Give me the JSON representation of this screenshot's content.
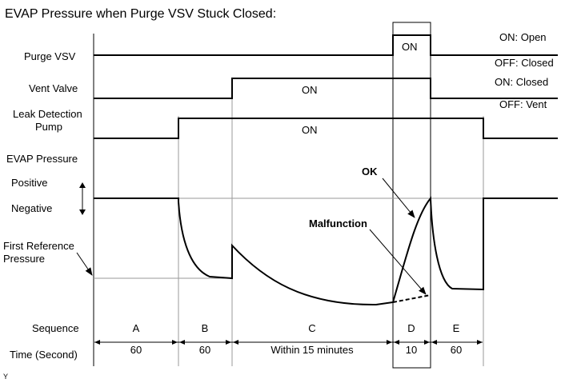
{
  "title": "EVAP Pressure when Purge VSV Stuck Closed:",
  "rows": {
    "purge_vsv": "Purge VSV",
    "vent_valve": "Vent Valve",
    "leak_pump_line1": "Leak Detection",
    "leak_pump_line2": "Pump",
    "evap_pressure": "EVAP Pressure",
    "positive": "Positive",
    "negative": "Negative",
    "first_ref_line1": "First Reference",
    "first_ref_line2": "Pressure",
    "sequence": "Sequence",
    "time": "Time (Second)"
  },
  "states": {
    "purge_on": "ON",
    "vent_on": "ON",
    "pump_on": "ON"
  },
  "legend": {
    "purge_on": "ON: Open",
    "purge_off": "OFF: Closed",
    "vent_on": "ON: Closed",
    "vent_off": "OFF: Vent"
  },
  "annotations": {
    "ok": "OK",
    "malfunction": "Malfunction"
  },
  "sequence": [
    "A",
    "B",
    "C",
    "D",
    "E"
  ],
  "times": [
    "60",
    "60",
    "Within 15 minutes",
    "10",
    "60"
  ],
  "footer_mark": "Y"
}
